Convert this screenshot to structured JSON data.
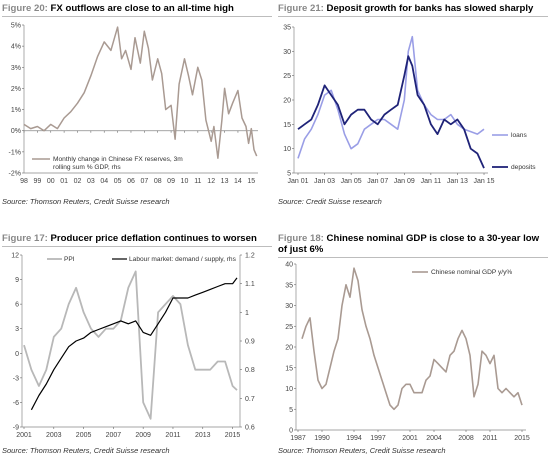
{
  "colors": {
    "grey_line": "#a99a92",
    "grey_light": "#b8b8b8",
    "navy": "#1f2378",
    "lavender": "#9a9ee6",
    "black": "#000000",
    "title_fig": "#888888"
  },
  "panels": {
    "p1": {
      "figure_label": "Figure 20:",
      "title": "FX outflows are close to an all-time high",
      "source": "Source: Thomson Reuters, Credit Suisse research",
      "legend_line1": "Monthly change in Chinese FX reserves, 3m",
      "legend_line2": "rolling sum % GDP, rhs"
    },
    "p2": {
      "figure_label": "Figure 21:",
      "title": "Deposit growth for banks has slowed sharply",
      "source": "Source: Credit Suisse research",
      "legend_loans": "loans",
      "legend_deposits": "deposits"
    },
    "p3": {
      "figure_label": "Figure 17:",
      "title": "Producer price deflation continues to worsen",
      "source": "Source: Thomson Reuters, Credit Suisse research",
      "legend_ppi": "PPI",
      "legend_labour": "Labour market: demand / supply, rhs"
    },
    "p4": {
      "figure_label": "Figure 18:",
      "title": "Chinese nominal GDP is close to a 30-year low of just 6%",
      "source": "Source: Thomson Reuters, Credit Suisse research",
      "legend": "Chinese nominal GDP y/y%"
    }
  },
  "chart_data": [
    {
      "type": "line",
      "title": "FX outflows are close to an all-time high",
      "x_tick_labels": [
        "98",
        "99",
        "00",
        "01",
        "02",
        "03",
        "04",
        "05",
        "06",
        "07",
        "08",
        "09",
        "10",
        "11",
        "12",
        "13",
        "14",
        "15"
      ],
      "y_tick_labels": [
        "5%",
        "4%",
        "3%",
        "2%",
        "1%",
        "0%",
        "-1%",
        "-2%"
      ],
      "ylim": [
        -2,
        5
      ],
      "grid": false,
      "legend_position": "bottom-left",
      "series": [
        {
          "name": "Monthly change in Chinese FX reserves, 3m rolling sum % GDP, rhs",
          "x": [
            1998.0,
            1998.5,
            1999.0,
            1999.5,
            2000.0,
            2000.5,
            2001.0,
            2001.5,
            2002.0,
            2002.5,
            2003.0,
            2003.5,
            2004.0,
            2004.5,
            2005.0,
            2005.3,
            2005.6,
            2006.0,
            2006.3,
            2006.7,
            2007.0,
            2007.3,
            2007.6,
            2008.0,
            2008.3,
            2008.6,
            2009.0,
            2009.3,
            2009.6,
            2010.0,
            2010.3,
            2010.6,
            2011.0,
            2011.3,
            2011.6,
            2012.0,
            2012.2,
            2012.5,
            2012.8,
            2013.0,
            2013.3,
            2013.6,
            2014.0,
            2014.3,
            2014.6,
            2014.8,
            2015.0,
            2015.2,
            2015.4
          ],
          "values": [
            0.3,
            0.1,
            0.2,
            0.0,
            0.3,
            0.1,
            0.6,
            0.9,
            1.3,
            1.8,
            2.6,
            3.5,
            4.2,
            3.8,
            4.9,
            3.4,
            3.8,
            2.9,
            4.4,
            3.2,
            4.7,
            3.9,
            2.4,
            3.4,
            2.7,
            1.0,
            1.2,
            -0.4,
            2.2,
            3.4,
            2.6,
            1.7,
            3.0,
            2.4,
            0.5,
            -0.5,
            0.2,
            -1.3,
            0.5,
            2.0,
            0.8,
            1.3,
            1.9,
            0.6,
            0.2,
            -0.6,
            0.1,
            -0.9,
            -1.2
          ]
        }
      ]
    },
    {
      "type": "line",
      "title": "Deposit growth for banks has slowed sharply",
      "x_tick_labels": [
        "Jan 01",
        "Jan 03",
        "Jan 05",
        "Jan 07",
        "Jan 09",
        "Jan 11",
        "Jan 13",
        "Jan 15"
      ],
      "y_tick_labels": [
        "5",
        "10",
        "15",
        "20",
        "25",
        "30",
        "35"
      ],
      "ylim": [
        5,
        35
      ],
      "grid": false,
      "legend_position": "right",
      "series": [
        {
          "name": "loans",
          "x": [
            2001.0,
            2001.5,
            2002.0,
            2002.5,
            2003.0,
            2003.5,
            2004.0,
            2004.5,
            2005.0,
            2005.5,
            2006.0,
            2006.5,
            2007.0,
            2007.5,
            2008.0,
            2008.5,
            2009.0,
            2009.3,
            2009.6,
            2010.0,
            2010.5,
            2011.0,
            2011.5,
            2012.0,
            2012.5,
            2013.0,
            2013.5,
            2014.0,
            2014.5,
            2015.0
          ],
          "values": [
            8,
            12,
            14,
            17,
            21,
            22,
            18,
            13,
            10,
            11,
            14,
            15,
            16,
            16,
            15,
            14,
            20,
            30,
            33,
            22,
            19,
            17,
            16,
            16,
            17,
            15,
            14,
            13.5,
            13,
            14
          ]
        },
        {
          "name": "deposits",
          "x": [
            2001.0,
            2001.5,
            2002.0,
            2002.5,
            2003.0,
            2003.5,
            2004.0,
            2004.5,
            2005.0,
            2005.5,
            2006.0,
            2006.5,
            2007.0,
            2007.5,
            2008.0,
            2008.5,
            2009.0,
            2009.3,
            2009.6,
            2010.0,
            2010.5,
            2011.0,
            2011.5,
            2012.0,
            2012.5,
            2013.0,
            2013.5,
            2014.0,
            2014.5,
            2015.0
          ],
          "values": [
            14,
            15,
            16,
            19,
            23,
            21,
            19,
            15,
            17,
            18,
            18,
            16,
            15,
            17,
            18,
            19,
            25,
            29,
            27,
            21,
            19,
            15,
            13,
            16,
            15,
            16,
            14,
            10,
            9,
            6
          ]
        }
      ]
    },
    {
      "type": "line",
      "title": "Producer price deflation continues to worsen",
      "x_tick_labels": [
        "2001",
        "2003",
        "2005",
        "2007",
        "2009",
        "2011",
        "2013",
        "2015"
      ],
      "y_tick_labels": [
        "12",
        "9",
        "6",
        "3",
        "0",
        "-3",
        "-6",
        "-9"
      ],
      "y2_tick_labels": [
        "1.2",
        "1.1",
        "1",
        "0.9",
        "0.8",
        "0.7",
        "0.6"
      ],
      "ylim": [
        -9,
        12
      ],
      "y2lim": [
        0.6,
        1.2
      ],
      "grid": false,
      "legend_position": "top",
      "series": [
        {
          "name": "PPI",
          "axis": "left",
          "x": [
            2001.0,
            2001.5,
            2002.0,
            2002.5,
            2003.0,
            2003.5,
            2004.0,
            2004.5,
            2005.0,
            2005.5,
            2006.0,
            2006.5,
            2007.0,
            2007.5,
            2008.0,
            2008.5,
            2009.0,
            2009.5,
            2010.0,
            2010.5,
            2011.0,
            2011.5,
            2012.0,
            2012.5,
            2013.0,
            2013.5,
            2014.0,
            2014.5,
            2015.0,
            2015.3
          ],
          "values": [
            1,
            -2,
            -4,
            -2,
            2,
            3,
            6,
            8,
            5,
            3,
            2,
            3,
            3,
            4,
            8,
            10,
            -6,
            -8,
            5,
            6,
            7,
            6,
            1,
            -2,
            -2,
            -2,
            -1,
            -1,
            -4,
            -4.5
          ]
        },
        {
          "name": "Labour market: demand / supply, rhs",
          "axis": "right",
          "x": [
            2001.5,
            2002.0,
            2002.5,
            2003.0,
            2003.5,
            2004.0,
            2004.5,
            2005.0,
            2005.5,
            2006.0,
            2006.5,
            2007.0,
            2007.5,
            2008.0,
            2008.5,
            2009.0,
            2009.5,
            2010.0,
            2010.5,
            2011.0,
            2011.5,
            2012.0,
            2012.5,
            2013.0,
            2013.5,
            2014.0,
            2014.5,
            2015.0,
            2015.3
          ],
          "values": [
            0.66,
            0.71,
            0.75,
            0.8,
            0.84,
            0.88,
            0.9,
            0.91,
            0.93,
            0.94,
            0.95,
            0.96,
            0.97,
            0.96,
            0.97,
            0.93,
            0.92,
            0.96,
            1.0,
            1.05,
            1.05,
            1.05,
            1.06,
            1.07,
            1.08,
            1.09,
            1.1,
            1.1,
            1.12
          ]
        }
      ]
    },
    {
      "type": "line",
      "title": "Chinese nominal GDP is close to a 30-year low of just 6%",
      "x_tick_labels": [
        "1987",
        "1990",
        "1994",
        "1997",
        "2001",
        "2004",
        "2008",
        "2011",
        "2015"
      ],
      "y_tick_labels": [
        "40",
        "35",
        "30",
        "25",
        "20",
        "15",
        "10",
        "5",
        "0"
      ],
      "ylim": [
        0,
        40
      ],
      "grid": false,
      "legend_position": "top-right",
      "series": [
        {
          "name": "Chinese nominal GDP y/y%",
          "x": [
            1987.5,
            1988.0,
            1988.5,
            1989.0,
            1989.5,
            1990.0,
            1990.5,
            1991.0,
            1991.5,
            1992.0,
            1992.5,
            1993.0,
            1993.5,
            1994.0,
            1994.5,
            1995.0,
            1995.5,
            1996.0,
            1996.5,
            1997.0,
            1997.5,
            1998.0,
            1998.5,
            1999.0,
            1999.5,
            2000.0,
            2000.5,
            2001.0,
            2001.5,
            2002.0,
            2002.5,
            2003.0,
            2003.5,
            2004.0,
            2004.5,
            2005.0,
            2005.5,
            2006.0,
            2006.5,
            2007.0,
            2007.5,
            2008.0,
            2008.5,
            2009.0,
            2009.5,
            2010.0,
            2010.5,
            2011.0,
            2011.5,
            2012.0,
            2012.5,
            2013.0,
            2013.5,
            2014.0,
            2014.5,
            2015.0
          ],
          "values": [
            22,
            25,
            27,
            19,
            12,
            10,
            11,
            15,
            19,
            22,
            30,
            35,
            32,
            39,
            36,
            29,
            25,
            22,
            18,
            15,
            12,
            9,
            6,
            5,
            6,
            10,
            11,
            11,
            9,
            9,
            9,
            12,
            13,
            17,
            16,
            15,
            14,
            18,
            19,
            22,
            24,
            22,
            18,
            8,
            11,
            19,
            18,
            16,
            18,
            10,
            9,
            10,
            9,
            8,
            9,
            6
          ]
        }
      ]
    }
  ]
}
